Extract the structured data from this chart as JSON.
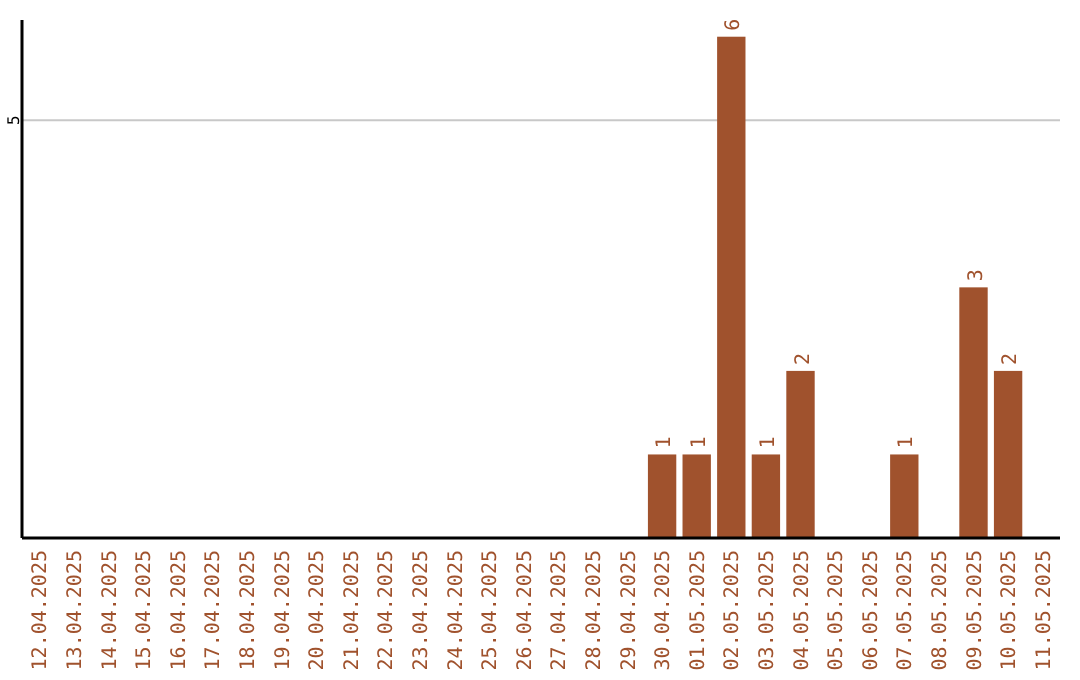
{
  "chart_data": {
    "type": "bar",
    "categories": [
      "12.04.2025",
      "13.04.2025",
      "14.04.2025",
      "15.04.2025",
      "16.04.2025",
      "17.04.2025",
      "18.04.2025",
      "19.04.2025",
      "20.04.2025",
      "21.04.2025",
      "22.04.2025",
      "23.04.2025",
      "24.04.2025",
      "25.04.2025",
      "26.04.2025",
      "27.04.2025",
      "28.04.2025",
      "29.04.2025",
      "30.04.2025",
      "01.05.2025",
      "02.05.2025",
      "03.05.2025",
      "04.05.2025",
      "05.05.2025",
      "06.05.2025",
      "07.05.2025",
      "08.05.2025",
      "09.05.2025",
      "10.05.2025",
      "11.05.2025"
    ],
    "values": [
      null,
      null,
      null,
      null,
      null,
      null,
      null,
      null,
      null,
      null,
      null,
      null,
      null,
      null,
      null,
      null,
      null,
      null,
      1,
      1,
      6,
      1,
      2,
      null,
      null,
      1,
      null,
      3,
      2,
      null
    ],
    "value_labels": [
      null,
      null,
      null,
      null,
      null,
      null,
      null,
      null,
      null,
      null,
      null,
      null,
      null,
      null,
      null,
      null,
      null,
      null,
      "1",
      "1",
      "6",
      "1",
      "2",
      null,
      null,
      "1",
      null,
      "3",
      "2",
      null
    ],
    "color": "#a0522d",
    "ylim": [
      0,
      6.2
    ],
    "yticks": [
      5
    ],
    "grid": "y"
  }
}
